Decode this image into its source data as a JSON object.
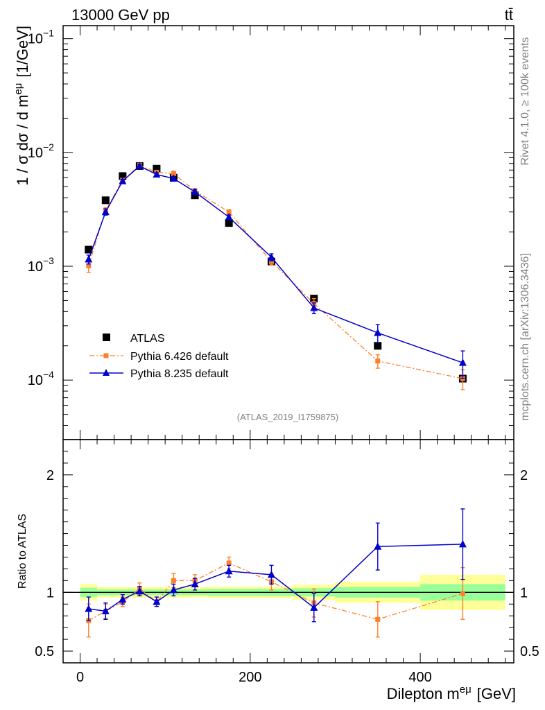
{
  "header": {
    "energy_label": "13000 GeV pp",
    "process_label": "tt̄",
    "analysis_id": "(ATLAS_2019_I1759875)",
    "side_label_rivet": "Rivet 4.1.0, ≥ 100k events",
    "side_label_mcplots": "mcplots.cern.ch [arXiv:1306.3436]"
  },
  "chart_data": {
    "type": "scatter",
    "title": "",
    "xlabel": "Dilepton m^eμ [GeV]",
    "xlabel_parts": {
      "main": "Dilepton m",
      "sup": "eμ",
      "unit": "[GeV]"
    },
    "ylabel_main": "1 / σ dσ / d m^eμ [1/GeV]",
    "ylabel_parts": {
      "pre": "1 / σ  dσ / d m",
      "sup": "eμ",
      "unit": "[1/GeV]"
    },
    "ylabel_ratio": "Ratio to ATLAS",
    "xlim": [
      -20,
      510
    ],
    "ylim_main": [
      3e-05,
      0.13
    ],
    "ylim_ratio": [
      0.4,
      2.3
    ],
    "y_scale_main": "log",
    "x_ticks": [
      0,
      200,
      400
    ],
    "x_tick_labels": [
      "0",
      "200",
      "400"
    ],
    "y_ticks_main": [
      {
        "value": 0.1,
        "base": "10",
        "exp": "−1"
      },
      {
        "value": 0.01,
        "base": "10",
        "exp": "−2"
      },
      {
        "value": 0.001,
        "base": "10",
        "exp": "−3"
      },
      {
        "value": 0.0001,
        "base": "10",
        "exp": "−4"
      }
    ],
    "y_ticks_ratio": [
      {
        "value": 2,
        "label": "2"
      },
      {
        "value": 1,
        "label": "1"
      },
      {
        "value": 0.5,
        "label": "0.5"
      }
    ],
    "bins": [
      {
        "lo": 0,
        "hi": 20,
        "x": 10
      },
      {
        "lo": 20,
        "hi": 40,
        "x": 30
      },
      {
        "lo": 40,
        "hi": 60,
        "x": 50
      },
      {
        "lo": 60,
        "hi": 80,
        "x": 70
      },
      {
        "lo": 80,
        "hi": 100,
        "x": 90
      },
      {
        "lo": 100,
        "hi": 120,
        "x": 110
      },
      {
        "lo": 120,
        "hi": 150,
        "x": 135
      },
      {
        "lo": 150,
        "hi": 200,
        "x": 175
      },
      {
        "lo": 200,
        "hi": 250,
        "x": 225
      },
      {
        "lo": 250,
        "hi": 300,
        "x": 275
      },
      {
        "lo": 300,
        "hi": 400,
        "x": 350
      },
      {
        "lo": 400,
        "hi": 500,
        "x": 450
      }
    ],
    "band_inner": [
      0.04,
      0.025,
      0.025,
      0.025,
      0.025,
      0.025,
      0.025,
      0.03,
      0.03,
      0.035,
      0.045,
      0.07
    ],
    "band_outer": [
      0.07,
      0.045,
      0.045,
      0.045,
      0.045,
      0.045,
      0.045,
      0.05,
      0.05,
      0.065,
      0.09,
      0.15
    ],
    "legend": [
      "ATLAS",
      "Pythia 6.426 default",
      "Pythia 8.235 default"
    ],
    "series": [
      {
        "name": "ATLAS",
        "color": "#000000",
        "marker": "square",
        "values": [
          0.0014,
          0.0038,
          0.0062,
          0.0076,
          0.0072,
          0.006,
          0.0042,
          0.0024,
          0.0011,
          0.00052,
          0.0002,
          0.000103
        ]
      },
      {
        "name": "Pythia 6.426 default",
        "color": "#ff7f2a",
        "marker": "square-small",
        "line": "dashdot",
        "values": [
          0.00101,
          0.0031,
          0.0057,
          0.0077,
          0.0067,
          0.0065,
          0.0046,
          0.003,
          0.0011,
          0.00047,
          0.000147,
          0.000103
        ],
        "ratio": [
          0.76,
          0.84,
          0.92,
          1.03,
          0.92,
          1.1,
          1.1,
          1.25,
          1.09,
          0.91,
          0.77,
          0.99
        ],
        "ratio_err": [
          0.14,
          0.06,
          0.04,
          0.05,
          0.04,
          0.06,
          0.05,
          0.05,
          0.07,
          0.12,
          0.15,
          0.22
        ]
      },
      {
        "name": "Pythia 8.235 default",
        "color": "#0000cc",
        "marker": "triangle",
        "line": "solid",
        "values": [
          0.00115,
          0.003,
          0.0056,
          0.0076,
          0.0064,
          0.0059,
          0.0045,
          0.0027,
          0.0012,
          0.00043,
          0.00026,
          0.000142
        ],
        "ratio": [
          0.86,
          0.84,
          0.94,
          1.01,
          0.92,
          1.02,
          1.07,
          1.18,
          1.15,
          0.87,
          1.39,
          1.41
        ],
        "ratio_err": [
          0.1,
          0.07,
          0.04,
          0.04,
          0.04,
          0.05,
          0.05,
          0.05,
          0.08,
          0.12,
          0.2,
          0.3
        ]
      }
    ]
  }
}
